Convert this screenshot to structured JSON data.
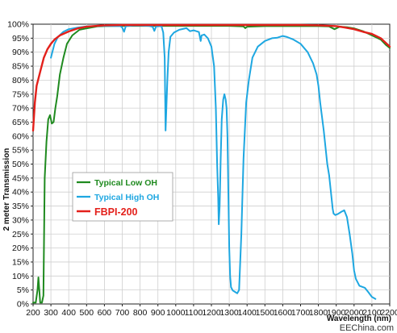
{
  "chart_data": {
    "type": "line",
    "xlabel": "Wavelength (nm)",
    "ylabel": "2 meter Transmission",
    "xlim": [
      200,
      2200
    ],
    "ylim": [
      0,
      100
    ],
    "x_ticks": [
      "200",
      "300",
      "400",
      "500",
      "600",
      "700",
      "800",
      "900",
      "1000",
      "1100",
      "1200",
      "1300",
      "1400",
      "1500",
      "1600",
      "1700",
      "1800",
      "1900",
      "2000",
      "2100",
      "2200"
    ],
    "y_ticks": [
      "0%",
      "5%",
      "10%",
      "15%",
      "20%",
      "25%",
      "30%",
      "35%",
      "40%",
      "45%",
      "50%",
      "55%",
      "60%",
      "65%",
      "70%",
      "75%",
      "80%",
      "85%",
      "90%",
      "95%",
      "100%"
    ],
    "grid": true,
    "legend_position": "lower-left",
    "series": [
      {
        "name": "Typical Low OH",
        "color": "#1f8a1f",
        "points": [
          [
            200,
            0.5
          ],
          [
            215,
            0.5
          ],
          [
            225,
            5
          ],
          [
            230,
            9.5
          ],
          [
            235,
            5
          ],
          [
            240,
            0.5
          ],
          [
            250,
            0.5
          ],
          [
            258,
            3
          ],
          [
            265,
            45
          ],
          [
            275,
            58
          ],
          [
            285,
            66
          ],
          [
            295,
            67.5
          ],
          [
            305,
            64.5
          ],
          [
            315,
            65
          ],
          [
            325,
            70
          ],
          [
            335,
            74
          ],
          [
            350,
            82
          ],
          [
            370,
            88
          ],
          [
            390,
            93
          ],
          [
            420,
            96
          ],
          [
            460,
            98
          ],
          [
            500,
            98.5
          ],
          [
            560,
            99.2
          ],
          [
            600,
            99.3
          ],
          [
            700,
            99.4
          ],
          [
            800,
            99.4
          ],
          [
            900,
            99.4
          ],
          [
            1000,
            99.4
          ],
          [
            1100,
            99.4
          ],
          [
            1200,
            99.4
          ],
          [
            1300,
            99.4
          ],
          [
            1380,
            99.2
          ],
          [
            1390,
            98.6
          ],
          [
            1400,
            99.1
          ],
          [
            1500,
            99.3
          ],
          [
            1600,
            99.3
          ],
          [
            1700,
            99.3
          ],
          [
            1800,
            99.3
          ],
          [
            1860,
            99.2
          ],
          [
            1890,
            98.2
          ],
          [
            1920,
            99.1
          ],
          [
            1960,
            98.9
          ],
          [
            2000,
            98.5
          ],
          [
            2050,
            97.5
          ],
          [
            2100,
            96
          ],
          [
            2150,
            94.5
          ],
          [
            2180,
            92.5
          ],
          [
            2200,
            91.5
          ]
        ]
      },
      {
        "name": "Typical High OH",
        "color": "#1ea7e1",
        "points": [
          [
            300,
            88
          ],
          [
            320,
            93
          ],
          [
            340,
            95.5
          ],
          [
            370,
            97.3
          ],
          [
            400,
            98.2
          ],
          [
            450,
            98.8
          ],
          [
            500,
            99.2
          ],
          [
            600,
            99.4
          ],
          [
            690,
            99.3
          ],
          [
            700,
            98.8
          ],
          [
            710,
            97.3
          ],
          [
            720,
            99.3
          ],
          [
            760,
            99.5
          ],
          [
            800,
            99.5
          ],
          [
            850,
            99.4
          ],
          [
            870,
            99.1
          ],
          [
            880,
            97.6
          ],
          [
            890,
            99.2
          ],
          [
            920,
            99.3
          ],
          [
            930,
            97
          ],
          [
            938,
            88
          ],
          [
            943,
            62
          ],
          [
            948,
            71
          ],
          [
            953,
            80
          ],
          [
            960,
            90
          ],
          [
            970,
            95.5
          ],
          [
            990,
            97
          ],
          [
            1020,
            98
          ],
          [
            1060,
            98.6
          ],
          [
            1080,
            97.5
          ],
          [
            1100,
            97.8
          ],
          [
            1130,
            97.2
          ],
          [
            1140,
            94
          ],
          [
            1145,
            96
          ],
          [
            1160,
            96.3
          ],
          [
            1180,
            95
          ],
          [
            1200,
            92
          ],
          [
            1215,
            85
          ],
          [
            1225,
            70
          ],
          [
            1232,
            50
          ],
          [
            1238,
            38
          ],
          [
            1241,
            28.5
          ],
          [
            1246,
            35
          ],
          [
            1252,
            52
          ],
          [
            1258,
            66
          ],
          [
            1266,
            73
          ],
          [
            1273,
            75
          ],
          [
            1280,
            73
          ],
          [
            1285,
            70
          ],
          [
            1290,
            60
          ],
          [
            1295,
            40
          ],
          [
            1300,
            20
          ],
          [
            1305,
            10
          ],
          [
            1310,
            6
          ],
          [
            1320,
            4.8
          ],
          [
            1335,
            4.2
          ],
          [
            1345,
            3.8
          ],
          [
            1355,
            5
          ],
          [
            1368,
            25
          ],
          [
            1380,
            52
          ],
          [
            1395,
            72
          ],
          [
            1410,
            80
          ],
          [
            1430,
            88
          ],
          [
            1460,
            92
          ],
          [
            1500,
            94
          ],
          [
            1540,
            95
          ],
          [
            1570,
            95.2
          ],
          [
            1600,
            95.8
          ],
          [
            1620,
            95.5
          ],
          [
            1660,
            94.5
          ],
          [
            1700,
            93
          ],
          [
            1740,
            90
          ],
          [
            1770,
            86
          ],
          [
            1790,
            82
          ],
          [
            1800,
            78
          ],
          [
            1810,
            72
          ],
          [
            1820,
            67
          ],
          [
            1830,
            62
          ],
          [
            1840,
            56
          ],
          [
            1850,
            50
          ],
          [
            1860,
            46
          ],
          [
            1870,
            40
          ],
          [
            1880,
            34
          ],
          [
            1885,
            32.3
          ],
          [
            1895,
            31.8
          ],
          [
            1910,
            32.2
          ],
          [
            1930,
            33
          ],
          [
            1945,
            33.5
          ],
          [
            1960,
            31
          ],
          [
            1975,
            25
          ],
          [
            1990,
            18
          ],
          [
            2000,
            12
          ],
          [
            2010,
            9
          ],
          [
            2030,
            6.5
          ],
          [
            2060,
            5.8
          ],
          [
            2080,
            4.2
          ],
          [
            2100,
            2.5
          ],
          [
            2120,
            1.8
          ]
        ]
      },
      {
        "name": "FBPI-200",
        "color": "#e3201b",
        "points": [
          [
            200,
            62
          ],
          [
            210,
            72
          ],
          [
            220,
            78
          ],
          [
            240,
            83
          ],
          [
            260,
            88
          ],
          [
            280,
            91
          ],
          [
            300,
            93
          ],
          [
            320,
            94.5
          ],
          [
            350,
            96
          ],
          [
            400,
            97.4
          ],
          [
            450,
            98.5
          ],
          [
            500,
            99.1
          ],
          [
            600,
            99.6
          ],
          [
            700,
            99.7
          ],
          [
            800,
            99.7
          ],
          [
            900,
            99.7
          ],
          [
            1000,
            99.7
          ],
          [
            1100,
            99.7
          ],
          [
            1200,
            99.7
          ],
          [
            1300,
            99.7
          ],
          [
            1400,
            99.7
          ],
          [
            1500,
            99.7
          ],
          [
            1600,
            99.7
          ],
          [
            1700,
            99.7
          ],
          [
            1800,
            99.6
          ],
          [
            1900,
            99.3
          ],
          [
            1950,
            98.8
          ],
          [
            2000,
            98.2
          ],
          [
            2050,
            97.3
          ],
          [
            2100,
            96.5
          ],
          [
            2150,
            95
          ],
          [
            2200,
            92
          ]
        ]
      }
    ]
  },
  "watermark": "EEChina.com"
}
